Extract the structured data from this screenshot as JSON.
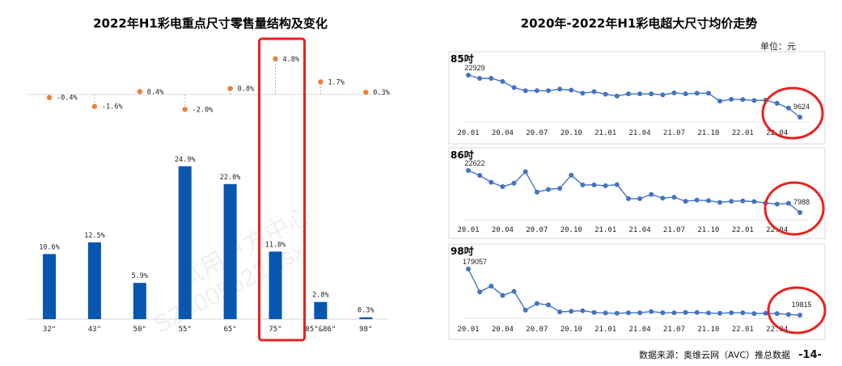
{
  "left": {
    "title": "2022年H1彩电重点尺寸零售量结构及变化",
    "highlight_category": "75\"",
    "highlight_color": "#e8231e"
  },
  "right": {
    "title": "2020年-2022年H1彩电超大尺寸均价走势",
    "unit": "单位：元",
    "highlight_color": "#e8231e"
  },
  "footer": {
    "source": "数据来源：奥维云网（AVC）推总数据",
    "page": "-14-"
  },
  "watermark": {
    "line1": "试用户方中心",
    "line2": "SZ0005622  lisx"
  },
  "colors": {
    "bar": "#0756b0",
    "change_dot": "#e8823a",
    "line": "#4472c4",
    "axis": "#d9d9d9",
    "panel_border": "#d9d9d9"
  },
  "chart_data": [
    {
      "type": "bar",
      "title": "2022年H1彩电重点尺寸零售量结构及变化",
      "categories": [
        "32\"",
        "43\"",
        "50\"",
        "55\"",
        "65\"",
        "75\"",
        "85\"&86\"",
        "98\""
      ],
      "series": [
        {
          "name": "零售量占比",
          "values": [
            10.6,
            12.5,
            5.9,
            24.9,
            22.0,
            11.0,
            2.8,
            0.3
          ],
          "labels": [
            "10.6%",
            "12.5%",
            "5.9%",
            "24.9%",
            "22.0%",
            "11.0%",
            "2.8%",
            "0.3%"
          ]
        },
        {
          "name": "占比变化",
          "values": [
            -0.4,
            -1.6,
            0.4,
            -2.0,
            0.8,
            4.8,
            1.7,
            0.3
          ],
          "labels": [
            "-0.4%",
            "-1.6%",
            "0.4%",
            "-2.0%",
            "0.8%",
            "4.8%",
            "1.7%",
            "0.3%"
          ]
        }
      ],
      "xlabel": "",
      "ylabel": "",
      "grid": false
    },
    {
      "type": "line",
      "title": "85吋",
      "x": [
        "20.01",
        "20.02",
        "20.03",
        "20.04",
        "20.05",
        "20.06",
        "20.07",
        "20.08",
        "20.09",
        "20.10",
        "20.11",
        "20.12",
        "21.01",
        "21.02",
        "21.03",
        "21.04",
        "21.05",
        "21.06",
        "21.07",
        "21.08",
        "21.09",
        "21.10",
        "21.11",
        "21.12",
        "22.01",
        "22.02",
        "22.03",
        "22.04",
        "22.05",
        "22.06"
      ],
      "xticks": [
        "20.01",
        "20.04",
        "20.07",
        "20.10",
        "21.01",
        "21.04",
        "21.07",
        "21.10",
        "22.01",
        "22.04"
      ],
      "values": [
        22929,
        21900,
        21900,
        20900,
        19000,
        18000,
        18000,
        18000,
        18500,
        18200,
        17200,
        17700,
        16900,
        16300,
        17000,
        17000,
        17000,
        16700,
        17300,
        17000,
        17200,
        17200,
        14700,
        15300,
        15200,
        14900,
        15000,
        14000,
        12500,
        9624
      ],
      "labels": {
        "first": "22929",
        "last": "9624"
      },
      "ylim": [
        8000,
        24000
      ]
    },
    {
      "type": "line",
      "title": "86吋",
      "x": [
        "20.01",
        "20.02",
        "20.03",
        "20.04",
        "20.05",
        "20.06",
        "20.07",
        "20.08",
        "20.09",
        "20.10",
        "20.11",
        "20.12",
        "21.01",
        "21.02",
        "21.03",
        "21.04",
        "21.05",
        "21.06",
        "21.07",
        "21.08",
        "21.09",
        "21.10",
        "21.11",
        "21.12",
        "22.01",
        "22.02",
        "22.03",
        "22.04",
        "22.05",
        "22.06"
      ],
      "xticks": [
        "20.01",
        "20.04",
        "20.07",
        "20.10",
        "21.01",
        "21.04",
        "21.07",
        "21.10",
        "22.01",
        "22.04"
      ],
      "values": [
        22622,
        20900,
        18500,
        17000,
        18200,
        22200,
        15100,
        16000,
        16400,
        21000,
        17600,
        17600,
        17300,
        17700,
        12800,
        12800,
        14300,
        13000,
        13300,
        11900,
        12300,
        12100,
        11500,
        11900,
        12000,
        11800,
        11300,
        10900,
        11200,
        7988
      ],
      "labels": {
        "first": "22622",
        "last": "7988"
      },
      "ylim": [
        6000,
        24000
      ]
    },
    {
      "type": "line",
      "title": "98吋",
      "x": [
        "20.01",
        "20.02",
        "20.03",
        "20.04",
        "20.05",
        "20.06",
        "20.07",
        "20.08",
        "20.09",
        "20.10",
        "20.11",
        "20.12",
        "21.01",
        "21.02",
        "21.03",
        "21.04",
        "21.05",
        "21.06",
        "21.07",
        "21.08",
        "21.09",
        "21.10",
        "21.11",
        "21.12",
        "22.01",
        "22.02",
        "22.03",
        "22.04",
        "22.05",
        "22.06"
      ],
      "xticks": [
        "20.01",
        "20.04",
        "20.07",
        "20.10",
        "21.01",
        "21.04",
        "21.07",
        "21.10",
        "22.01",
        "22.04"
      ],
      "values": [
        179057,
        100000,
        120000,
        88000,
        102000,
        37000,
        60000,
        55000,
        31000,
        33000,
        35000,
        29000,
        27000,
        26000,
        28000,
        28000,
        32000,
        28000,
        28000,
        29000,
        29000,
        27000,
        26000,
        28000,
        28000,
        25000,
        26000,
        25000,
        22000,
        19815
      ],
      "labels": {
        "first": "179057",
        "last": "19815"
      },
      "ylim": [
        0,
        190000
      ]
    }
  ]
}
